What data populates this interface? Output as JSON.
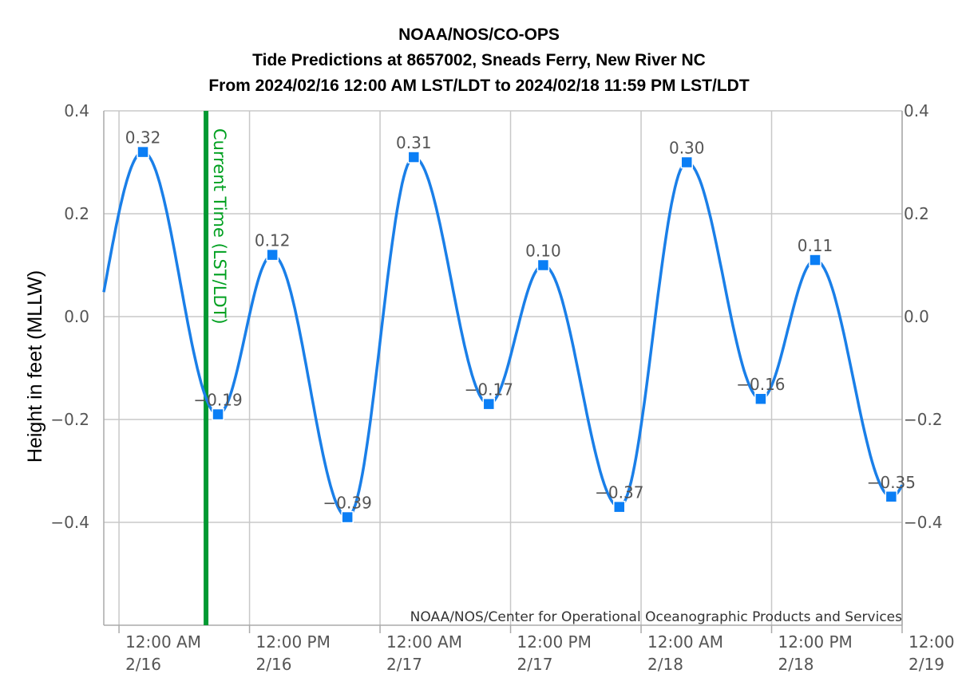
{
  "header": {
    "title": "NOAA/NOS/CO-OPS",
    "subtitle1": "Tide Predictions at 8657002, Sneads Ferry, New River NC",
    "subtitle2": "From 2024/02/16 12:00 AM LST/LDT to 2024/02/18 11:59 PM LST/LDT"
  },
  "credit": "NOAA/NOS/Center for Operational Oceanographic Products and Services",
  "current_time_label": "Current Time (LST/LDT)",
  "colors": {
    "line": "#1a7fe8",
    "marker": "#0a7ef5",
    "current_time": "#009933",
    "grid": "#c8c8c8",
    "axis": "#aaaaaa"
  },
  "chart_data": {
    "type": "line",
    "ylabel": "Height in feet (MLLW)",
    "xlabel": "",
    "ylim": [
      -0.6,
      0.4
    ],
    "yticks": [
      0.4,
      0.2,
      0.0,
      -0.2,
      -0.4
    ],
    "ytick_labels": [
      "0.4",
      "0.2",
      "0.0",
      "−0.2",
      "−0.4"
    ],
    "xrange_hours": [
      -1.4,
      72
    ],
    "xticks": [
      {
        "hour": 0,
        "line1": "12:00 AM",
        "line2": "2/16"
      },
      {
        "hour": 12,
        "line1": "12:00 PM",
        "line2": "2/16"
      },
      {
        "hour": 24,
        "line1": "12:00 AM",
        "line2": "2/17"
      },
      {
        "hour": 36,
        "line1": "12:00 PM",
        "line2": "2/17"
      },
      {
        "hour": 48,
        "line1": "12:00 AM",
        "line2": "2/18"
      },
      {
        "hour": 60,
        "line1": "12:00 PM",
        "line2": "2/18"
      },
      {
        "hour": 72,
        "line1": "12:00",
        "line2": "2/19"
      }
    ],
    "current_time_hour": 8.0,
    "series": [
      {
        "points": [
          {
            "hour": 2.2,
            "value": 0.32,
            "label": "0.32"
          },
          {
            "hour": 9.1,
            "value": -0.19,
            "label": "−0.19"
          },
          {
            "hour": 14.1,
            "value": 0.12,
            "label": "0.12"
          },
          {
            "hour": 21.0,
            "value": -0.39,
            "label": "−0.39"
          },
          {
            "hour": 27.1,
            "value": 0.31,
            "label": "0.31"
          },
          {
            "hour": 34.0,
            "value": -0.17,
            "label": "−0.17"
          },
          {
            "hour": 39.0,
            "value": 0.1,
            "label": "0.10"
          },
          {
            "hour": 46.0,
            "value": -0.37,
            "label": "−0.37"
          },
          {
            "hour": 52.2,
            "value": 0.3,
            "label": "0.30"
          },
          {
            "hour": 59.0,
            "value": -0.16,
            "label": "−0.16"
          },
          {
            "hour": 64.0,
            "value": 0.11,
            "label": "0.11"
          },
          {
            "hour": 71.0,
            "value": -0.35,
            "label": "−0.35"
          }
        ]
      }
    ]
  }
}
